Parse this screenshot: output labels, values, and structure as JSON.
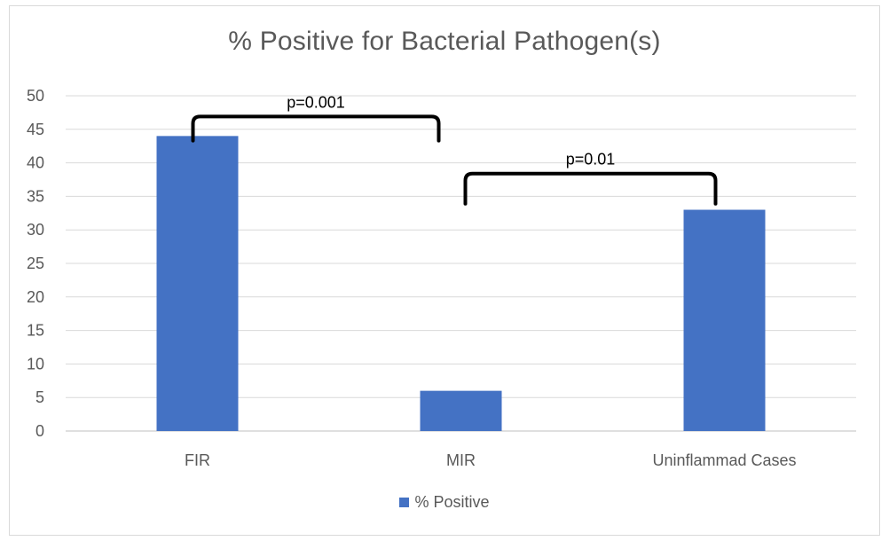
{
  "chart_data": {
    "type": "bar",
    "title": "% Positive for Bacterial Pathogen(s)",
    "categories": [
      "FIR",
      "MIR",
      "Uninflammad Cases"
    ],
    "series": [
      {
        "name": "% Positive",
        "values": [
          44,
          6,
          33
        ],
        "color": "#4472c4"
      }
    ],
    "ylim": [
      0,
      50
    ],
    "yticks": [
      "0",
      "5",
      "10",
      "15",
      "20",
      "25",
      "30",
      "35",
      "40",
      "45",
      "50"
    ],
    "grid": true,
    "legend_position": "bottom",
    "annotations": [
      {
        "label": "p=0.001",
        "from": "FIR",
        "to": "MIR",
        "bracket_y": 46.9,
        "left_end": 43.3,
        "right_end": 43.3
      },
      {
        "label": "p=0.01",
        "from": "MIR",
        "to": "Uninflammad Cases",
        "bracket_y": 38.4,
        "left_end": 33.9,
        "right_end": 33.9
      }
    ]
  }
}
